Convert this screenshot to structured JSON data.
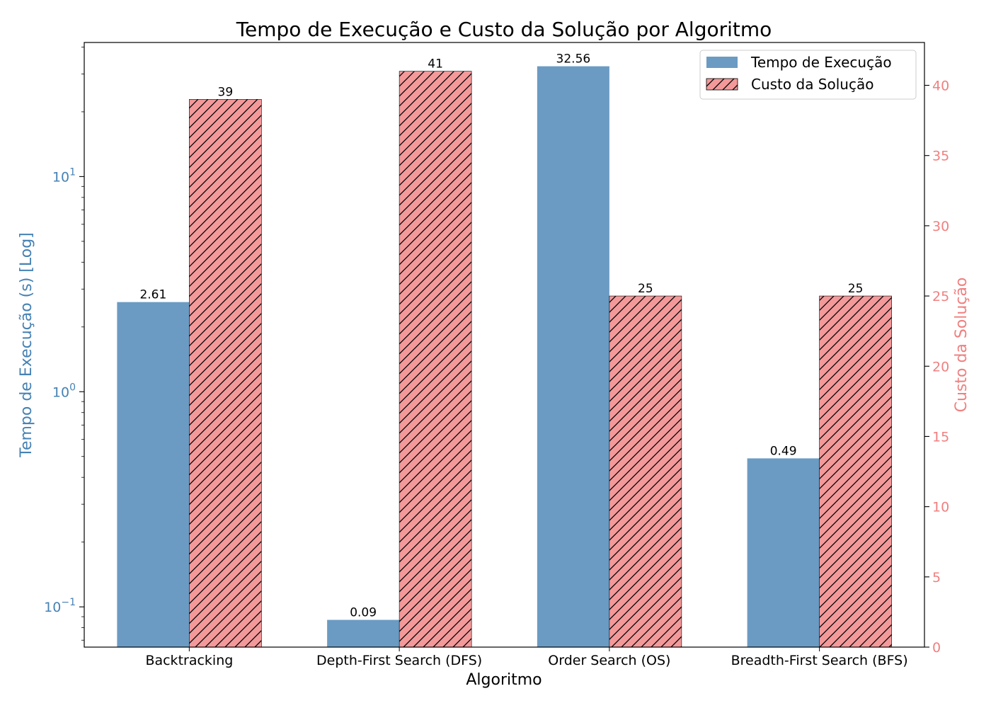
{
  "chart_data": {
    "type": "bar",
    "title": "Tempo de Execução e Custo da Solução por Algoritmo",
    "xlabel": "Algoritmo",
    "categories": [
      "Backtracking",
      "Depth-First Search (DFS)",
      "Order Search (OS)",
      "Breadth-First Search (BFS)"
    ],
    "left_axis": {
      "label": "Tempo de Execução (s) [Log]",
      "scale": "log",
      "ylim": [
        0.065,
        42
      ],
      "major_ticks": [
        {
          "value": 0.1,
          "base": "10",
          "exp": "−1"
        },
        {
          "value": 1,
          "base": "10",
          "exp": "0"
        },
        {
          "value": 10,
          "base": "10",
          "exp": "1"
        }
      ],
      "color": "#4682b4"
    },
    "right_axis": {
      "label": "Custo da Solução",
      "scale": "linear",
      "ylim": [
        0,
        43.05
      ],
      "ticks": [
        0,
        5,
        10,
        15,
        20,
        25,
        30,
        35,
        40
      ],
      "tick_labels": [
        "0",
        "5",
        "10",
        "15",
        "20",
        "25",
        "30",
        "35",
        "40"
      ],
      "color": "#f08080"
    },
    "series": [
      {
        "name": "Tempo de Execução",
        "axis": "left",
        "color": "#6b9bc3",
        "values": [
          2.61,
          0.087,
          32.56,
          0.49
        ],
        "labels": [
          "2.61",
          "0.09",
          "32.56",
          "0.49"
        ]
      },
      {
        "name": "Custo da Solução",
        "axis": "right",
        "color": "#f4999a",
        "hatch": "diagonal",
        "values": [
          39,
          41,
          25,
          25
        ],
        "labels": [
          "39",
          "41",
          "25",
          "25"
        ]
      }
    ],
    "legend": {
      "position": "top-right",
      "entries": [
        "Tempo de Execução",
        "Custo da Solução"
      ]
    }
  }
}
